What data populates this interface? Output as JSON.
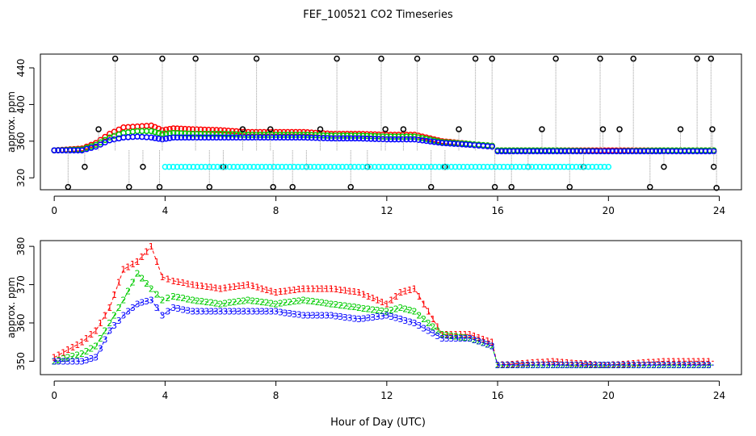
{
  "figure": {
    "title": "FEF_100521  CO2 Timeseries",
    "xlabel": "Hour of Day (UTC)"
  },
  "colors": {
    "black": "#000000",
    "red": "#ff0000",
    "green": "#00cc00",
    "blue": "#0000ff",
    "cyan": "#00ffff",
    "gray": "#999999"
  },
  "chart_data": [
    {
      "type": "scatter",
      "ylabel": "approx. ppm",
      "xlim": [
        -0.5,
        24.8
      ],
      "ylim": [
        307,
        455
      ],
      "xticks": [
        0,
        4,
        8,
        12,
        16,
        20,
        24
      ],
      "yticks": [
        320,
        360,
        400,
        440
      ],
      "grid": false,
      "series": [
        {
          "color": "red",
          "marker": "circle",
          "x": [
            0.0,
            1.0,
            1.5,
            2.0,
            2.5,
            3.0,
            3.5,
            3.9,
            4.3,
            5.0,
            6.0,
            7.0,
            8.0,
            9.0,
            10.0,
            11.0,
            12.0,
            13.0,
            14.0,
            15.0,
            15.8,
            16.0,
            18.0,
            20.0,
            22.0,
            23.8
          ],
          "y": [
            350,
            352,
            358,
            368,
            375,
            376,
            377,
            372,
            374,
            373,
            372,
            370,
            370,
            370,
            368,
            368,
            367,
            367,
            360,
            357,
            355,
            350,
            350,
            350,
            350,
            350
          ]
        },
        {
          "color": "green",
          "marker": "circle",
          "x": [
            0.0,
            1.0,
            1.5,
            2.0,
            2.5,
            3.0,
            3.5,
            3.9,
            4.3,
            5.0,
            6.0,
            7.0,
            8.0,
            9.0,
            10.0,
            11.0,
            12.0,
            13.0,
            14.0,
            15.0,
            15.8,
            16.0,
            18.0,
            20.0,
            22.0,
            23.8
          ],
          "y": [
            350,
            351,
            356,
            364,
            369,
            371,
            371,
            368,
            369,
            368,
            368,
            367,
            367,
            367,
            366,
            366,
            365,
            365,
            359,
            357,
            355,
            350,
            350,
            349,
            350,
            350
          ]
        },
        {
          "color": "blue",
          "marker": "circle",
          "x": [
            0.0,
            1.0,
            1.5,
            2.0,
            2.5,
            3.0,
            3.5,
            3.9,
            4.3,
            5.0,
            6.0,
            7.0,
            8.0,
            9.0,
            10.0,
            11.0,
            12.0,
            13.0,
            14.0,
            15.0,
            15.8,
            16.0,
            18.0,
            20.0,
            22.0,
            23.8
          ],
          "y": [
            350,
            350,
            354,
            361,
            364,
            365,
            364,
            362,
            364,
            364,
            364,
            364,
            364,
            364,
            363,
            363,
            362,
            362,
            358,
            356,
            354,
            349,
            349,
            349,
            349,
            349
          ]
        },
        {
          "color": "black",
          "marker": "circle",
          "style": "high-low spikes",
          "x": [
            0.5,
            1.1,
            1.6,
            2.2,
            2.7,
            3.2,
            3.8,
            3.9,
            5.1,
            5.6,
            6.1,
            6.8,
            7.3,
            7.8,
            7.9,
            8.6,
            9.1,
            9.6,
            10.2,
            10.7,
            11.3,
            11.8,
            11.95,
            12.6,
            13.1,
            13.6,
            14.1,
            14.6,
            15.2,
            15.8,
            15.9,
            16.5,
            17.1,
            17.6,
            18.1,
            18.6,
            19.1,
            19.7,
            19.8,
            20.4,
            20.9,
            21.5,
            22.0,
            22.6,
            23.2,
            23.7,
            23.75,
            23.8,
            23.9
          ],
          "y": [
            310,
            332,
            373,
            450,
            310,
            332,
            310,
            450,
            450,
            310,
            332,
            373,
            450,
            373,
            310,
            310,
            332,
            373,
            450,
            310,
            332,
            450,
            373,
            373,
            450,
            310,
            332,
            373,
            450,
            450,
            310,
            310,
            332,
            373,
            450,
            310,
            332,
            450,
            373,
            373,
            450,
            310,
            332,
            373,
            450,
            450,
            373,
            332,
            309
          ]
        },
        {
          "color": "cyan",
          "marker": "circle",
          "x": [
            4.0,
            12.0,
            20.0
          ],
          "y": [
            332,
            332,
            332
          ]
        }
      ]
    },
    {
      "type": "scatter",
      "ylabel": "approx. ppm",
      "xlim": [
        -0.5,
        24.8
      ],
      "ylim": [
        346.5,
        381.5
      ],
      "xticks": [
        0,
        4,
        8,
        12,
        16,
        20,
        24
      ],
      "yticks": [
        350,
        360,
        370,
        380
      ],
      "grid": false,
      "series": [
        {
          "color": "red",
          "marker": "1",
          "x": [
            0.0,
            0.5,
            1.0,
            1.5,
            2.0,
            2.5,
            3.0,
            3.5,
            3.9,
            4.3,
            5.0,
            6.0,
            7.0,
            8.0,
            9.0,
            10.0,
            11.0,
            12.0,
            12.5,
            13.0,
            14.0,
            15.0,
            15.8,
            16.0,
            18.0,
            19.7,
            20.0,
            22.0,
            23.8
          ],
          "y": [
            351,
            353,
            355,
            358,
            364,
            374,
            376,
            380,
            372,
            371,
            370,
            369,
            370,
            368,
            369,
            369,
            368,
            365,
            368,
            369,
            357,
            357,
            355,
            349,
            350,
            349,
            349,
            350,
            350
          ]
        },
        {
          "color": "green",
          "marker": "2",
          "x": [
            0.0,
            0.5,
            1.0,
            1.5,
            2.0,
            2.5,
            3.0,
            3.5,
            3.9,
            4.3,
            5.0,
            6.0,
            7.0,
            8.0,
            9.0,
            10.0,
            11.0,
            12.0,
            12.5,
            13.0,
            14.0,
            15.0,
            15.8,
            16.0,
            18.0,
            19.7,
            20.0,
            22.0,
            23.8
          ],
          "y": [
            350,
            351,
            352,
            354,
            360,
            366,
            373,
            369,
            366,
            367,
            366,
            365,
            366,
            365,
            366,
            365,
            364,
            363,
            364,
            363,
            357,
            356,
            354,
            349,
            349,
            349,
            349,
            349,
            349
          ]
        },
        {
          "color": "blue",
          "marker": "3",
          "x": [
            0.0,
            0.5,
            1.0,
            1.5,
            2.0,
            2.5,
            3.0,
            3.5,
            3.9,
            4.3,
            5.0,
            6.0,
            7.0,
            8.0,
            9.0,
            10.0,
            11.0,
            12.0,
            12.5,
            13.0,
            14.0,
            15.0,
            15.8,
            16.0,
            18.0,
            19.7,
            20.0,
            22.0,
            23.8
          ],
          "y": [
            350,
            350,
            350,
            351,
            358,
            362,
            365,
            366,
            362,
            364,
            363,
            363,
            363,
            363,
            362,
            362,
            361,
            362,
            361,
            360,
            356,
            356,
            354,
            349,
            349,
            349,
            349,
            349,
            349
          ]
        }
      ]
    }
  ]
}
